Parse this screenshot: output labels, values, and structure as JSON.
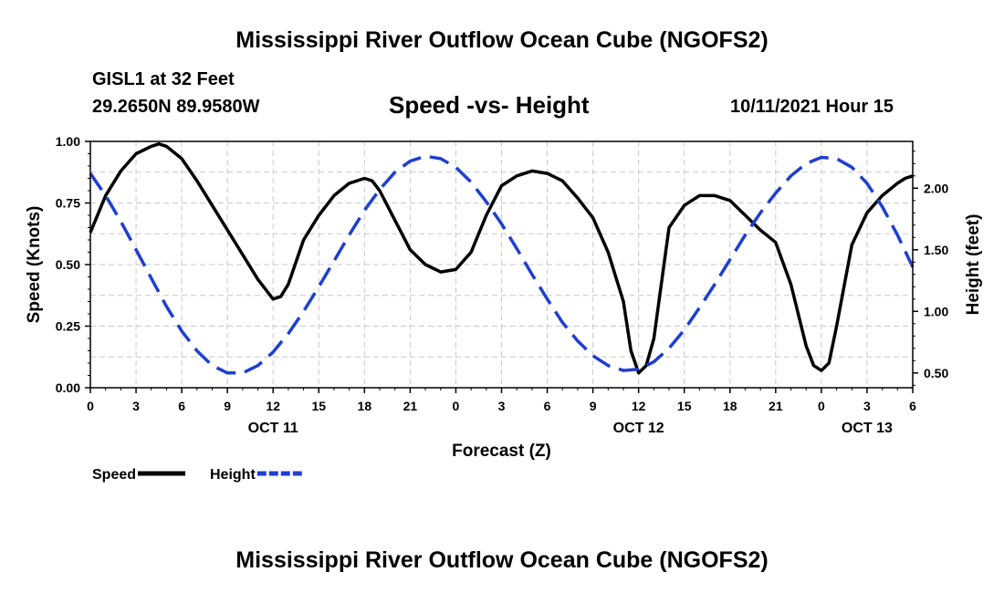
{
  "header": {
    "title": "Mississippi River Outflow Ocean Cube (NGOFS2)",
    "station": "GISL1 at 32 Feet",
    "coords": "29.2650N  89.9580W",
    "chart_title": "Speed -vs- Height",
    "datetime": "10/11/2021 Hour 15"
  },
  "footer": {
    "title": "Mississippi River Outflow Ocean Cube (NGOFS2)"
  },
  "chart_data": {
    "type": "line",
    "title": "Speed -vs- Height",
    "xlabel": "Forecast (Z)",
    "ylabel": "Speed (Knots)",
    "y2label": "Height (feet)",
    "xlim": [
      0,
      54
    ],
    "ylim": [
      0,
      1
    ],
    "y2lim": [
      0.38,
      2.38
    ],
    "grid": true,
    "x_ticks": [
      0,
      3,
      6,
      9,
      12,
      15,
      18,
      21,
      24,
      27,
      30,
      33,
      36,
      39,
      42,
      45,
      48,
      51,
      54
    ],
    "x_tick_labels": [
      "0",
      "3",
      "6",
      "9",
      "12",
      "15",
      "18",
      "21",
      "0",
      "3",
      "6",
      "9",
      "12",
      "15",
      "18",
      "21",
      "0",
      "3",
      "6"
    ],
    "date_labels": [
      {
        "x": 12,
        "label": "OCT 11"
      },
      {
        "x": 36,
        "label": "OCT 12"
      },
      {
        "x": 51,
        "label": "OCT 13"
      }
    ],
    "y_ticks": [
      0,
      0.25,
      0.5,
      0.75,
      1.0
    ],
    "y_tick_labels": [
      "0.00",
      "0.25",
      "0.50",
      "0.75",
      "1.00"
    ],
    "y2_ticks": [
      0.5,
      1.0,
      1.5,
      2.0
    ],
    "y2_tick_labels": [
      "0.50",
      "1.00",
      "1.50",
      "2.00"
    ],
    "series": [
      {
        "name": "Speed",
        "axis": "left",
        "color": "#000000",
        "dash": false,
        "x": [
          0,
          1,
          2,
          3,
          4,
          4.5,
          5,
          6,
          7,
          8,
          9,
          10,
          11,
          12,
          12.5,
          13,
          14,
          15,
          16,
          17,
          18,
          18.5,
          19,
          20,
          21,
          22,
          23,
          24,
          25,
          26,
          27,
          28,
          29,
          30,
          31,
          32,
          33,
          34,
          35,
          35.5,
          36,
          36.5,
          37,
          38,
          39,
          40,
          41,
          42,
          43,
          44,
          45,
          46,
          47,
          47.5,
          48,
          48.5,
          49,
          50,
          51,
          52,
          53,
          53.5,
          54
        ],
        "values": [
          0.63,
          0.78,
          0.88,
          0.95,
          0.98,
          0.99,
          0.98,
          0.93,
          0.84,
          0.74,
          0.64,
          0.54,
          0.44,
          0.36,
          0.37,
          0.42,
          0.6,
          0.7,
          0.78,
          0.83,
          0.85,
          0.84,
          0.8,
          0.68,
          0.56,
          0.5,
          0.47,
          0.48,
          0.55,
          0.7,
          0.82,
          0.86,
          0.88,
          0.87,
          0.84,
          0.77,
          0.69,
          0.55,
          0.35,
          0.15,
          0.06,
          0.09,
          0.2,
          0.65,
          0.74,
          0.78,
          0.78,
          0.76,
          0.7,
          0.64,
          0.59,
          0.42,
          0.17,
          0.09,
          0.07,
          0.1,
          0.25,
          0.58,
          0.71,
          0.78,
          0.83,
          0.85,
          0.86
        ]
      },
      {
        "name": "Height",
        "axis": "right",
        "color": "#1f3fd1",
        "dash": true,
        "x": [
          0,
          1,
          2,
          3,
          4,
          5,
          6,
          7,
          8,
          9,
          10,
          11,
          12,
          13,
          14,
          15,
          16,
          17,
          18,
          19,
          20,
          21,
          22,
          23,
          24,
          25,
          26,
          27,
          28,
          29,
          30,
          31,
          32,
          33,
          34,
          35,
          36,
          37,
          38,
          39,
          40,
          41,
          42,
          43,
          44,
          45,
          46,
          47,
          48,
          49,
          50,
          51,
          52,
          53,
          54
        ],
        "values": [
          2.12,
          1.94,
          1.73,
          1.5,
          1.27,
          1.04,
          0.84,
          0.68,
          0.56,
          0.5,
          0.5,
          0.56,
          0.67,
          0.82,
          1.0,
          1.2,
          1.41,
          1.62,
          1.82,
          1.99,
          2.13,
          2.22,
          2.26,
          2.24,
          2.17,
          2.05,
          1.89,
          1.71,
          1.51,
          1.3,
          1.1,
          0.91,
          0.76,
          0.64,
          0.56,
          0.52,
          0.53,
          0.59,
          0.7,
          0.85,
          1.03,
          1.22,
          1.42,
          1.62,
          1.8,
          1.96,
          2.1,
          2.2,
          2.25,
          2.24,
          2.17,
          2.04,
          1.85,
          1.62,
          1.36
        ]
      }
    ],
    "legend": [
      {
        "label": "Speed",
        "color": "#000000",
        "dash": false
      },
      {
        "label": "Height",
        "color": "#1f3fd1",
        "dash": true
      }
    ],
    "legend_position": "bottom-left"
  }
}
